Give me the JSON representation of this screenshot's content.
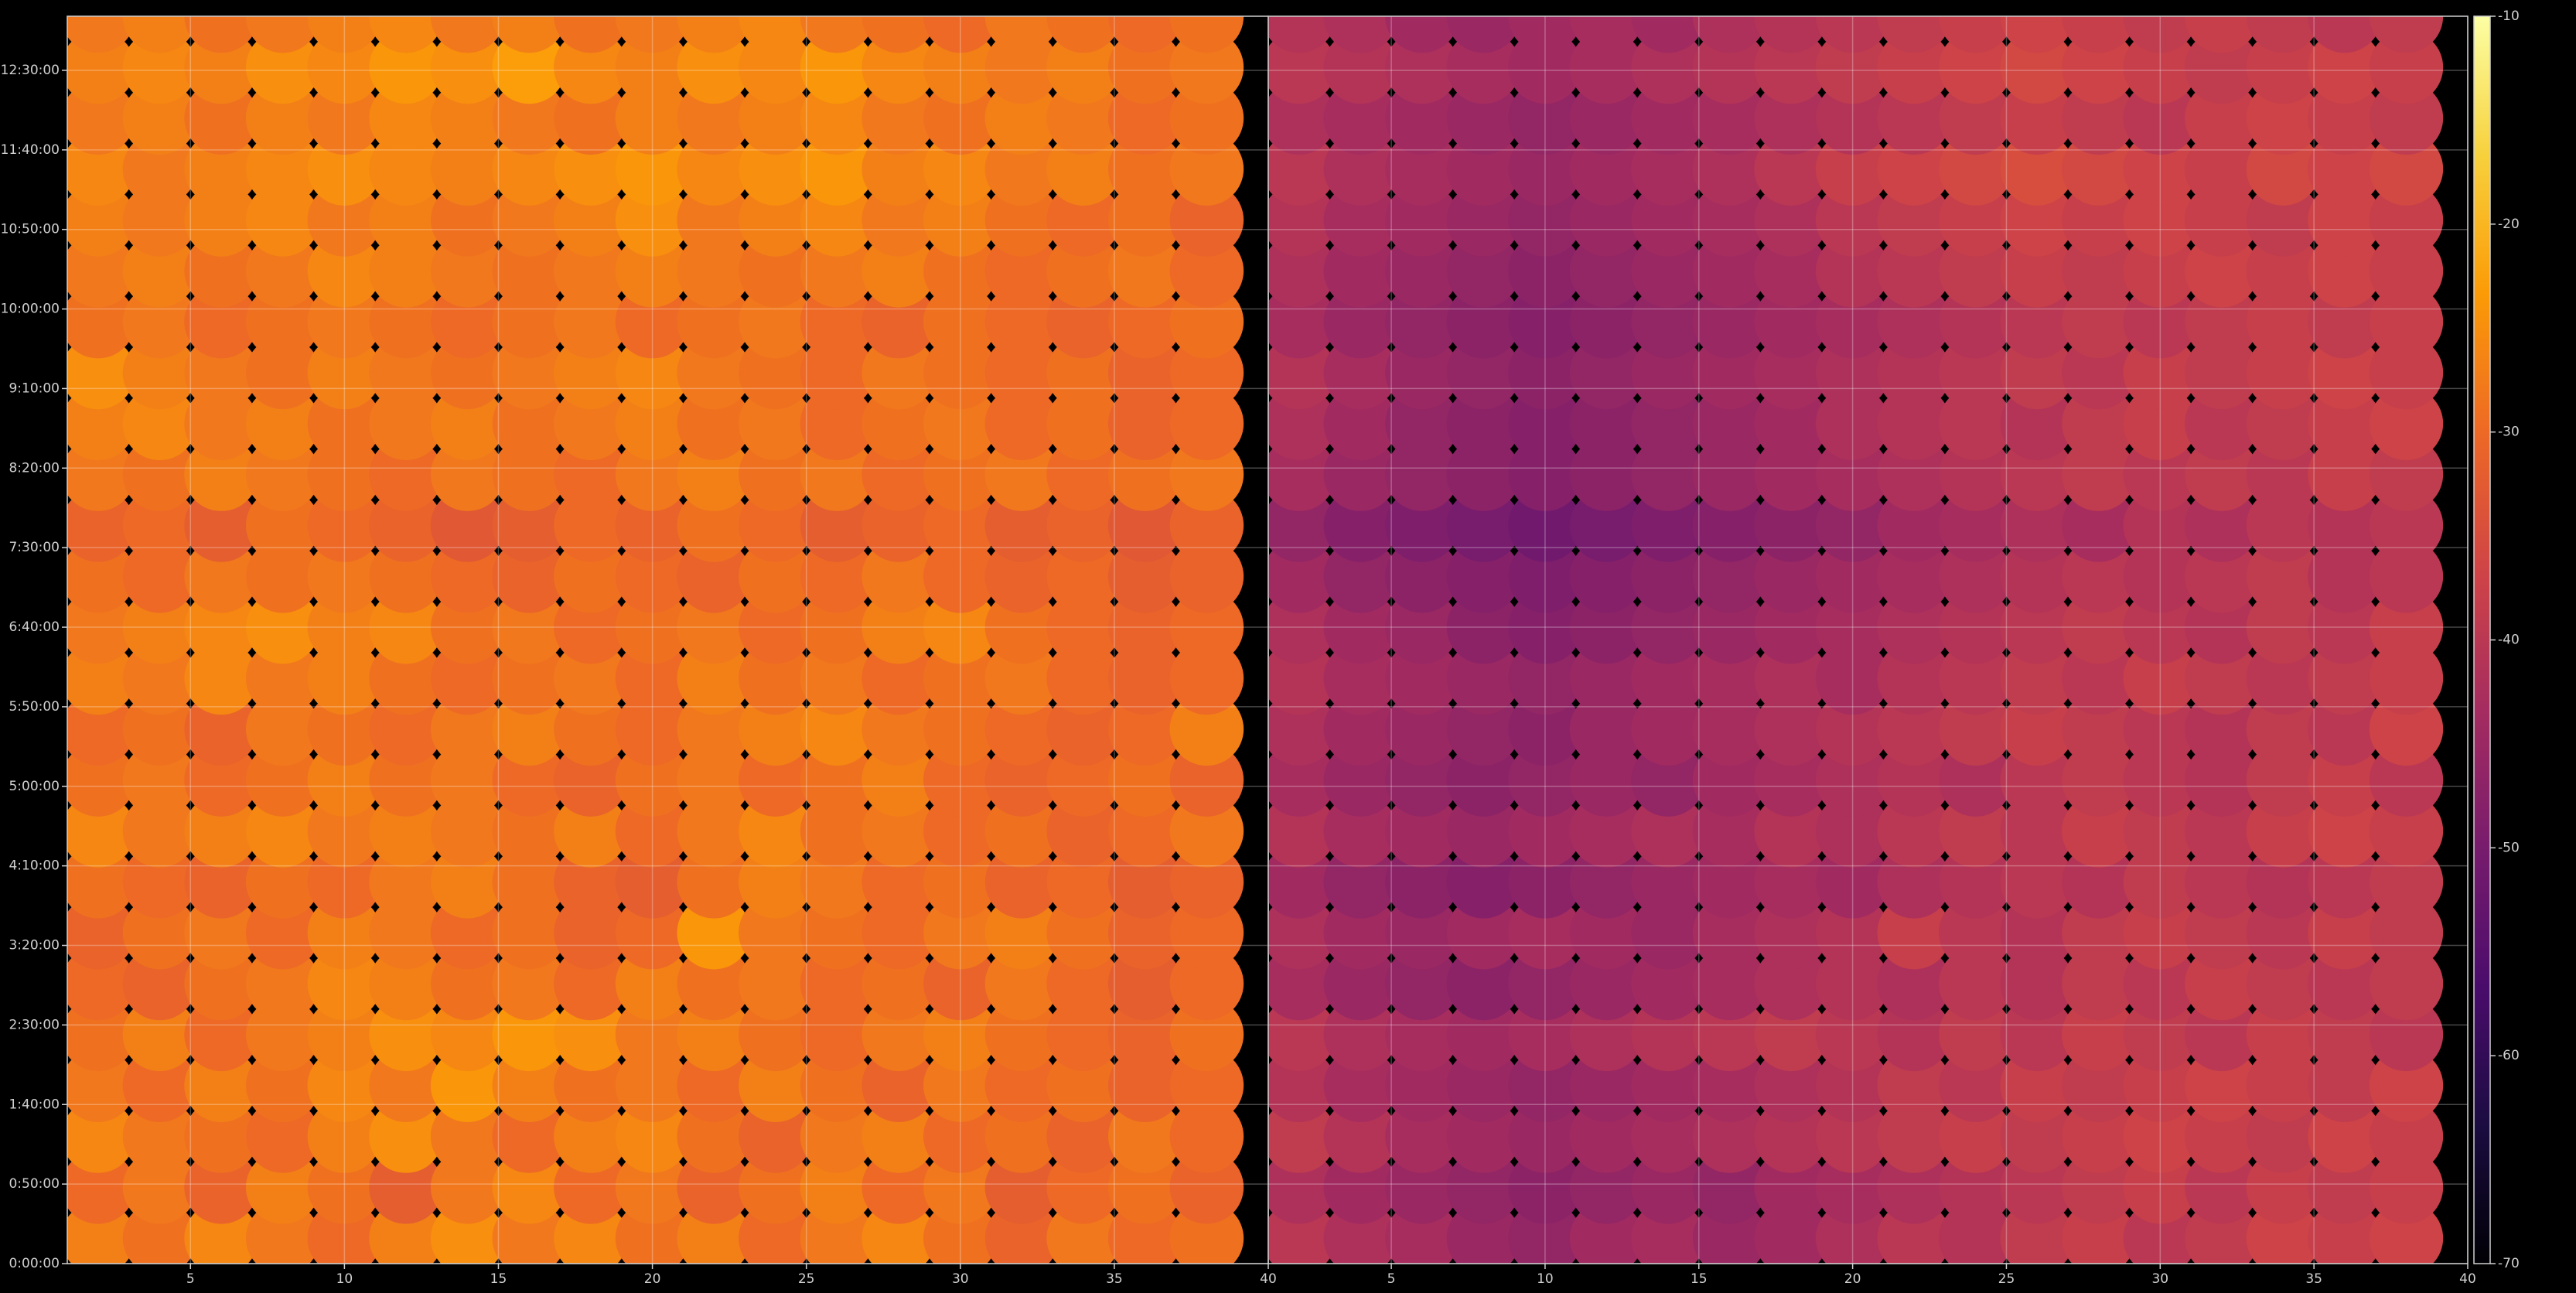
{
  "chart_data": [
    {
      "type": "heatmap",
      "x": [
        2,
        4,
        6,
        8,
        10,
        12,
        14,
        16,
        18,
        20,
        22,
        24,
        26,
        28,
        30,
        32,
        34,
        36,
        38
      ],
      "y": [
        16,
        48,
        80,
        112,
        144,
        176,
        208,
        240,
        272,
        304,
        336,
        368,
        400,
        432,
        464,
        496,
        528,
        560,
        592,
        624,
        656,
        688,
        720,
        752,
        784
      ],
      "values": [
        [
          -27,
          -29,
          -26,
          -28,
          -30,
          -27,
          -25,
          -28,
          -26,
          -29,
          -27,
          -30,
          -28,
          -26,
          -29,
          -31,
          -28,
          -30,
          -29
        ],
        [
          -30,
          -28,
          -31,
          -27,
          -29,
          -32,
          -28,
          -26,
          -30,
          -28,
          -31,
          -29,
          -27,
          -30,
          -28,
          -32,
          -30,
          -29,
          -31
        ],
        [
          -26,
          -28,
          -29,
          -30,
          -27,
          -25,
          -28,
          -30,
          -27,
          -26,
          -29,
          -31,
          -28,
          -27,
          -30,
          -29,
          -31,
          -28,
          -30
        ],
        [
          -28,
          -30,
          -27,
          -29,
          -26,
          -28,
          -24,
          -27,
          -29,
          -28,
          -30,
          -27,
          -29,
          -31,
          -28,
          -30,
          -29,
          -31,
          -30
        ],
        [
          -29,
          -27,
          -30,
          -28,
          -27,
          -25,
          -26,
          -24,
          -25,
          -28,
          -27,
          -29,
          -30,
          -28,
          -27,
          -29,
          -30,
          -31,
          -29
        ],
        [
          -30,
          -31,
          -29,
          -28,
          -26,
          -27,
          -29,
          -28,
          -30,
          -27,
          -29,
          -28,
          -30,
          -29,
          -31,
          -28,
          -30,
          -32,
          -30
        ],
        [
          -31,
          -29,
          -28,
          -30,
          -27,
          -28,
          -30,
          -29,
          -31,
          -30,
          -24,
          -28,
          -29,
          -30,
          -28,
          -27,
          -29,
          -31,
          -30
        ],
        [
          -29,
          -30,
          -31,
          -29,
          -30,
          -28,
          -27,
          -29,
          -31,
          -32,
          -29,
          -27,
          -28,
          -30,
          -29,
          -31,
          -30,
          -32,
          -31
        ],
        [
          -26,
          -28,
          -27,
          -26,
          -28,
          -27,
          -28,
          -29,
          -27,
          -30,
          -28,
          -26,
          -29,
          -28,
          -30,
          -29,
          -31,
          -30,
          -28
        ],
        [
          -29,
          -28,
          -30,
          -29,
          -27,
          -29,
          -28,
          -30,
          -31,
          -29,
          -28,
          -30,
          -29,
          -27,
          -30,
          -31,
          -30,
          -29,
          -31
        ],
        [
          -30,
          -29,
          -31,
          -28,
          -29,
          -30,
          -28,
          -27,
          -29,
          -30,
          -28,
          -27,
          -26,
          -28,
          -29,
          -30,
          -31,
          -30,
          -27
        ],
        [
          -27,
          -28,
          -26,
          -28,
          -27,
          -29,
          -30,
          -29,
          -28,
          -30,
          -27,
          -29,
          -28,
          -30,
          -29,
          -28,
          -30,
          -31,
          -30
        ],
        [
          -28,
          -27,
          -26,
          -25,
          -27,
          -26,
          -29,
          -28,
          -30,
          -29,
          -28,
          -30,
          -29,
          -27,
          -26,
          -29,
          -30,
          -31,
          -30
        ],
        [
          -29,
          -30,
          -28,
          -29,
          -28,
          -29,
          -30,
          -31,
          -29,
          -30,
          -31,
          -29,
          -30,
          -28,
          -30,
          -31,
          -30,
          -32,
          -31
        ],
        [
          -31,
          -30,
          -32,
          -29,
          -30,
          -31,
          -33,
          -32,
          -30,
          -31,
          -29,
          -30,
          -32,
          -31,
          -30,
          -32,
          -31,
          -33,
          -31
        ],
        [
          -28,
          -29,
          -27,
          -28,
          -29,
          -30,
          -28,
          -29,
          -30,
          -28,
          -27,
          -29,
          -28,
          -30,
          -29,
          -28,
          -30,
          -29,
          -28
        ],
        [
          -27,
          -26,
          -28,
          -27,
          -29,
          -28,
          -27,
          -29,
          -28,
          -27,
          -29,
          -28,
          -30,
          -29,
          -28,
          -30,
          -29,
          -31,
          -30
        ],
        [
          -25,
          -27,
          -28,
          -29,
          -27,
          -28,
          -29,
          -28,
          -27,
          -26,
          -28,
          -29,
          -30,
          -28,
          -29,
          -30,
          -29,
          -31,
          -30
        ],
        [
          -29,
          -28,
          -30,
          -29,
          -28,
          -29,
          -30,
          -29,
          -28,
          -30,
          -29,
          -28,
          -30,
          -31,
          -29,
          -30,
          -31,
          -30,
          -29
        ],
        [
          -28,
          -27,
          -29,
          -28,
          -26,
          -27,
          -28,
          -29,
          -28,
          -27,
          -28,
          -29,
          -28,
          -27,
          -29,
          -30,
          -29,
          -28,
          -30
        ],
        [
          -27,
          -28,
          -27,
          -26,
          -28,
          -27,
          -29,
          -28,
          -27,
          -25,
          -28,
          -27,
          -26,
          -28,
          -27,
          -29,
          -30,
          -29,
          -31
        ],
        [
          -26,
          -28,
          -27,
          -26,
          -25,
          -26,
          -27,
          -26,
          -25,
          -24,
          -26,
          -25,
          -24,
          -27,
          -26,
          -28,
          -27,
          -29,
          -28
        ],
        [
          -28,
          -27,
          -29,
          -27,
          -28,
          -26,
          -27,
          -28,
          -29,
          -27,
          -28,
          -27,
          -26,
          -28,
          -29,
          -27,
          -28,
          -30,
          -29
        ],
        [
          -27,
          -26,
          -27,
          -25,
          -26,
          -24,
          -25,
          -23,
          -26,
          -27,
          -25,
          -26,
          -24,
          -26,
          -27,
          -28,
          -27,
          -29,
          -28
        ],
        [
          -28,
          -27,
          -29,
          -28,
          -27,
          -26,
          -28,
          -27,
          -29,
          -28,
          -27,
          -26,
          -28,
          -29,
          -30,
          -28,
          -29,
          -30,
          -29
        ]
      ],
      "xlim": [
        1,
        40
      ],
      "xticks": [
        5,
        10,
        15,
        20,
        25,
        30,
        35,
        40
      ],
      "ylim": [
        0,
        784
      ],
      "yticks": [
        {
          "value": 0,
          "label": "0:00:00"
        },
        {
          "value": 50,
          "label": "0:50:00"
        },
        {
          "value": 100,
          "label": "1:40:00"
        },
        {
          "value": 150,
          "label": "2:30:00"
        },
        {
          "value": 200,
          "label": "3:20:00"
        },
        {
          "value": 250,
          "label": "4:10:00"
        },
        {
          "value": 300,
          "label": "5:00:00"
        },
        {
          "value": 350,
          "label": "5:50:00"
        },
        {
          "value": 400,
          "label": "6:40:00"
        },
        {
          "value": 450,
          "label": "7:30:00"
        },
        {
          "value": 500,
          "label": "8:20:00"
        },
        {
          "value": 550,
          "label": "9:10:00"
        },
        {
          "value": 600,
          "label": "10:00:00"
        },
        {
          "value": 650,
          "label": "10:50:00"
        },
        {
          "value": 700,
          "label": "11:40:00"
        },
        {
          "value": 750,
          "label": "12:30:00"
        }
      ],
      "grid": true
    },
    {
      "type": "heatmap",
      "x": [
        2,
        4,
        6,
        8,
        10,
        12,
        14,
        16,
        18,
        20,
        22,
        24,
        26,
        28,
        30,
        32,
        34,
        36,
        38
      ],
      "y": [
        16,
        48,
        80,
        112,
        144,
        176,
        208,
        240,
        272,
        304,
        336,
        368,
        400,
        432,
        464,
        496,
        528,
        560,
        592,
        624,
        656,
        688,
        720,
        752,
        784
      ],
      "values": [
        [
          -40,
          -42,
          -43,
          -45,
          -46,
          -44,
          -43,
          -45,
          -44,
          -42,
          -40,
          -41,
          -39,
          -38,
          -40,
          -39,
          -37,
          -38,
          -37
        ],
        [
          -42,
          -44,
          -45,
          -46,
          -47,
          -46,
          -45,
          -46,
          -44,
          -43,
          -42,
          -41,
          -40,
          -39,
          -38,
          -40,
          -38,
          -39,
          -38
        ],
        [
          -39,
          -41,
          -43,
          -44,
          -45,
          -44,
          -43,
          -42,
          -41,
          -40,
          -39,
          -38,
          -39,
          -38,
          -37,
          -38,
          -39,
          -37,
          -38
        ],
        [
          -41,
          -43,
          -44,
          -45,
          -46,
          -45,
          -44,
          -43,
          -42,
          -41,
          -39,
          -40,
          -38,
          -39,
          -38,
          -37,
          -38,
          -39,
          -37
        ],
        [
          -40,
          -42,
          -43,
          -44,
          -43,
          -42,
          -41,
          -40,
          -39,
          -40,
          -41,
          -39,
          -40,
          -38,
          -39,
          -40,
          -38,
          -39,
          -40
        ],
        [
          -43,
          -45,
          -46,
          -47,
          -46,
          -45,
          -44,
          -43,
          -42,
          -41,
          -42,
          -40,
          -41,
          -39,
          -40,
          -38,
          -39,
          -40,
          -39
        ],
        [
          -42,
          -44,
          -45,
          -44,
          -43,
          -44,
          -45,
          -43,
          -42,
          -41,
          -38,
          -40,
          -41,
          -39,
          -38,
          -39,
          -40,
          -38,
          -39
        ],
        [
          -44,
          -46,
          -47,
          -48,
          -47,
          -46,
          -45,
          -44,
          -43,
          -44,
          -42,
          -41,
          -40,
          -41,
          -39,
          -40,
          -41,
          -40,
          -39
        ],
        [
          -41,
          -43,
          -44,
          -45,
          -44,
          -43,
          -42,
          -43,
          -41,
          -42,
          -40,
          -39,
          -40,
          -38,
          -39,
          -40,
          -38,
          -37,
          -38
        ],
        [
          -43,
          -45,
          -46,
          -47,
          -46,
          -45,
          -46,
          -44,
          -43,
          -42,
          -41,
          -42,
          -40,
          -39,
          -40,
          -41,
          -39,
          -38,
          -40
        ],
        [
          -42,
          -44,
          -45,
          -46,
          -47,
          -45,
          -44,
          -43,
          -42,
          -41,
          -40,
          -39,
          -38,
          -39,
          -40,
          -41,
          -39,
          -40,
          -37
        ],
        [
          -41,
          -43,
          -44,
          -45,
          -46,
          -45,
          -44,
          -43,
          -42,
          -43,
          -41,
          -40,
          -39,
          -40,
          -38,
          -39,
          -40,
          -39,
          -38
        ],
        [
          -42,
          -44,
          -45,
          -47,
          -48,
          -47,
          -46,
          -45,
          -44,
          -43,
          -42,
          -41,
          -40,
          -39,
          -40,
          -41,
          -39,
          -40,
          -38
        ],
        [
          -44,
          -46,
          -47,
          -48,
          -49,
          -48,
          -47,
          -46,
          -45,
          -44,
          -43,
          -42,
          -41,
          -40,
          -41,
          -40,
          -39,
          -41,
          -40
        ],
        [
          -46,
          -48,
          -49,
          -50,
          -51,
          -50,
          -49,
          -48,
          -47,
          -46,
          -44,
          -43,
          -42,
          -43,
          -41,
          -42,
          -40,
          -41,
          -40
        ],
        [
          -43,
          -45,
          -46,
          -47,
          -48,
          -47,
          -46,
          -45,
          -44,
          -43,
          -42,
          -41,
          -40,
          -39,
          -40,
          -39,
          -40,
          -38,
          -39
        ],
        [
          -42,
          -44,
          -46,
          -47,
          -48,
          -47,
          -46,
          -45,
          -44,
          -42,
          -41,
          -40,
          -41,
          -39,
          -38,
          -40,
          -39,
          -38,
          -37
        ],
        [
          -41,
          -43,
          -45,
          -46,
          -47,
          -46,
          -45,
          -44,
          -43,
          -42,
          -41,
          -40,
          -39,
          -40,
          -38,
          -39,
          -38,
          -37,
          -38
        ],
        [
          -43,
          -45,
          -46,
          -47,
          -48,
          -47,
          -46,
          -45,
          -44,
          -43,
          -42,
          -41,
          -40,
          -39,
          -40,
          -39,
          -38,
          -39,
          -38
        ],
        [
          -42,
          -44,
          -45,
          -46,
          -47,
          -46,
          -45,
          -44,
          -43,
          -41,
          -40,
          -39,
          -38,
          -39,
          -38,
          -37,
          -38,
          -37,
          -38
        ],
        [
          -41,
          -43,
          -44,
          -45,
          -46,
          -45,
          -44,
          -43,
          -42,
          -40,
          -39,
          -38,
          -37,
          -38,
          -37,
          -38,
          -39,
          -37,
          -38
        ],
        [
          -40,
          -42,
          -43,
          -44,
          -45,
          -44,
          -43,
          -42,
          -40,
          -38,
          -37,
          -36,
          -35,
          -36,
          -37,
          -38,
          -36,
          -37,
          -36
        ],
        [
          -42,
          -43,
          -44,
          -45,
          -46,
          -45,
          -44,
          -43,
          -42,
          -41,
          -40,
          -39,
          -38,
          -39,
          -40,
          -38,
          -37,
          -38,
          -39
        ],
        [
          -40,
          -41,
          -42,
          -43,
          -44,
          -43,
          -42,
          -41,
          -40,
          -39,
          -38,
          -37,
          -36,
          -37,
          -38,
          -39,
          -38,
          -37,
          -38
        ],
        [
          -41,
          -42,
          -44,
          -45,
          -44,
          -43,
          -44,
          -42,
          -41,
          -40,
          -39,
          -38,
          -37,
          -38,
          -39,
          -38,
          -39,
          -40,
          -39
        ]
      ],
      "xlim": [
        1,
        40
      ],
      "xticks": [
        5,
        10,
        15,
        20,
        25,
        30,
        35,
        40
      ],
      "ylim": [
        0,
        784
      ],
      "sharey": true,
      "grid": true
    }
  ],
  "colorbar": {
    "colormap": "inferno",
    "clim": [
      -70,
      -10
    ],
    "ticks": [
      -70,
      -60,
      -50,
      -40,
      -30,
      -20,
      -10
    ]
  }
}
